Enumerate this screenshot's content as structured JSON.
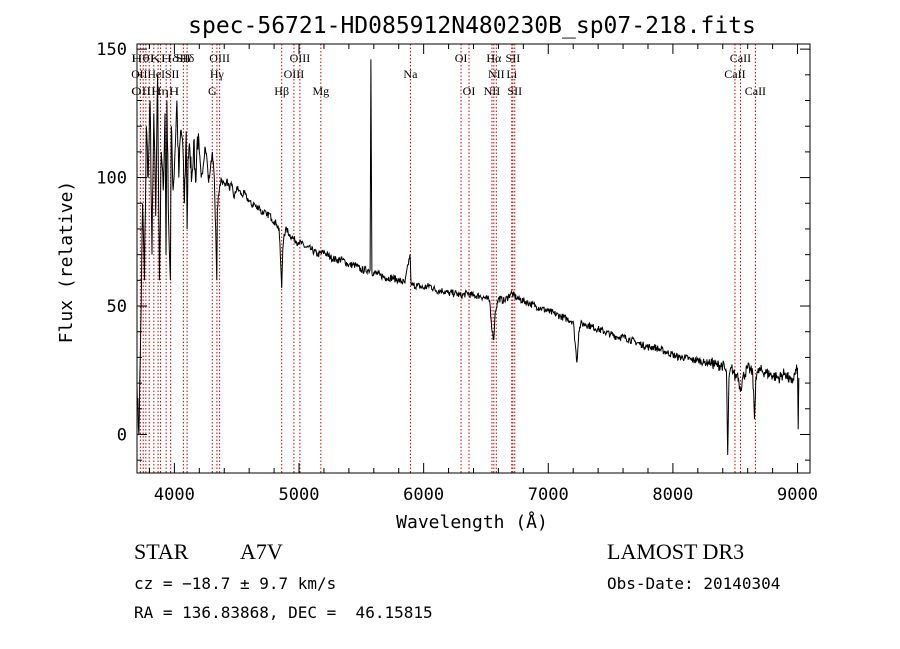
{
  "chart_data": {
    "type": "line",
    "title": "spec-56721-HD085912N480230B_sp07-218.fits",
    "xlabel": "Wavelength (Å)",
    "ylabel": "Flux (relative)",
    "xlim": [
      3700,
      9100
    ],
    "ylim": [
      -15,
      152
    ],
    "xticks": [
      4000,
      5000,
      6000,
      7000,
      8000,
      9000
    ],
    "yticks": [
      0,
      50,
      100,
      150
    ],
    "x_minor_step": 200,
    "y_minor_step": 10,
    "grid": false,
    "series": [
      {
        "name": "flux",
        "x": [
          3700,
          3715,
          3730,
          3745,
          3760,
          3775,
          3790,
          3805,
          3820,
          3835,
          3850,
          3865,
          3880,
          3895,
          3910,
          3925,
          3933,
          3940,
          3955,
          3968,
          3975,
          3990,
          4005,
          4020,
          4035,
          4050,
          4065,
          4080,
          4095,
          4102,
          4110,
          4125,
          4140,
          4155,
          4170,
          4185,
          4200,
          4215,
          4230,
          4245,
          4260,
          4275,
          4290,
          4305,
          4320,
          4335,
          4340,
          4345,
          4360,
          4375,
          4390,
          4405,
          4420,
          4440,
          4460,
          4480,
          4500,
          4520,
          4540,
          4560,
          4580,
          4600,
          4620,
          4640,
          4660,
          4680,
          4700,
          4720,
          4740,
          4760,
          4780,
          4800,
          4820,
          4840,
          4850,
          4861,
          4870,
          4880,
          4900,
          4920,
          4940,
          4960,
          4980,
          5000,
          5050,
          5100,
          5150,
          5200,
          5250,
          5300,
          5350,
          5400,
          5450,
          5500,
          5550,
          5570,
          5577,
          5585,
          5600,
          5650,
          5700,
          5750,
          5800,
          5850,
          5890,
          5900,
          5950,
          6000,
          6050,
          6100,
          6150,
          6200,
          6250,
          6300,
          6350,
          6400,
          6450,
          6500,
          6530,
          6550,
          6563,
          6575,
          6600,
          6650,
          6700,
          6750,
          6800,
          6850,
          6900,
          6950,
          7000,
          7050,
          7100,
          7150,
          7200,
          7230,
          7245,
          7260,
          7300,
          7350,
          7400,
          7450,
          7500,
          7550,
          7600,
          7650,
          7700,
          7750,
          7800,
          7850,
          7900,
          7950,
          8000,
          8050,
          8100,
          8150,
          8200,
          8250,
          8300,
          8350,
          8400,
          8430,
          8440,
          8450,
          8470,
          8490,
          8500,
          8520,
          8530,
          8545,
          8560,
          8600,
          8640,
          8655,
          8665,
          8680,
          8700,
          8750,
          8800,
          8850,
          8900,
          8950,
          9000,
          9005,
          9010
        ],
        "y": [
          20,
          0,
          40,
          90,
          60,
          120,
          100,
          130,
          70,
          125,
          85,
          140,
          60,
          110,
          95,
          125,
          70,
          130,
          80,
          60,
          120,
          95,
          110,
          130,
          100,
          118,
          115,
          90,
          118,
          80,
          108,
          110,
          100,
          114,
          98,
          116,
          110,
          100,
          104,
          112,
          108,
          98,
          104,
          110,
          100,
          72,
          60,
          88,
          95,
          100,
          98,
          97,
          99,
          96,
          97,
          92,
          96,
          95,
          93,
          94,
          92,
          91,
          89,
          90,
          88,
          89,
          86,
          87,
          85,
          86,
          84,
          83,
          82,
          80,
          70,
          57,
          72,
          78,
          80,
          78,
          77,
          76,
          75,
          75,
          73,
          72,
          70,
          71,
          69,
          68,
          68,
          66,
          66,
          64,
          64,
          64,
          146,
          63,
          63,
          62,
          61,
          61,
          60,
          59,
          70,
          58,
          58,
          57,
          58,
          56,
          56,
          55,
          55,
          54,
          55,
          54,
          54,
          53,
          52,
          40,
          37,
          48,
          53,
          52,
          55,
          53,
          52,
          51,
          50,
          49,
          48,
          47,
          46,
          45,
          44,
          28,
          40,
          43,
          43,
          42,
          41,
          40,
          39,
          38,
          38,
          37,
          36,
          35,
          34,
          34,
          33,
          32,
          31,
          30,
          30,
          29,
          29,
          28,
          28,
          27,
          27,
          24,
          -8,
          22,
          26,
          24,
          22,
          24,
          20,
          18,
          22,
          26,
          24,
          6,
          22,
          24,
          25,
          24,
          23,
          22,
          24,
          20,
          26,
          2,
          22
        ]
      }
    ],
    "line_markers": [
      {
        "wavelength": 3727,
        "label": "OII",
        "row": 2
      },
      {
        "wavelength": 3750,
        "label": "",
        "row": 0
      },
      {
        "wavelength": 3771,
        "label": "",
        "row": 0
      },
      {
        "wavelength": 3798,
        "label": "Hθ",
        "row": 1
      },
      {
        "wavelength": 3835,
        "label": "Hη",
        "row": 2
      },
      {
        "wavelength": 3869,
        "label": "",
        "row": 0
      },
      {
        "wavelength": 3889,
        "label": "Hε",
        "row": 1
      },
      {
        "wavelength": 3934,
        "label": "K",
        "row": 1
      },
      {
        "wavelength": 3970,
        "label": "H",
        "row": 2
      },
      {
        "wavelength": 4072,
        "label": "SII",
        "row": 1
      },
      {
        "wavelength": 4102,
        "label": "Hδ",
        "row": 1
      },
      {
        "wavelength": 4304,
        "label": "G",
        "row": 3
      },
      {
        "wavelength": 4341,
        "label": "Hγ",
        "row": 2
      },
      {
        "wavelength": 4363,
        "label": "OIII",
        "row": 1
      },
      {
        "wavelength": 4861,
        "label": "Hβ",
        "row": 3
      },
      {
        "wavelength": 4959,
        "label": "OIII",
        "row": 2
      },
      {
        "wavelength": 5007,
        "label": "OIII",
        "row": 1
      },
      {
        "wavelength": 5175,
        "label": "Mg",
        "row": 3
      },
      {
        "wavelength": 5894,
        "label": "Na",
        "row": 2
      },
      {
        "wavelength": 6300,
        "label": "OI",
        "row": 1
      },
      {
        "wavelength": 6364,
        "label": "OI",
        "row": 3
      },
      {
        "wavelength": 6548,
        "label": "NII",
        "row": 3
      },
      {
        "wavelength": 6563,
        "label": "Hα",
        "row": 1
      },
      {
        "wavelength": 6583,
        "label": "NII",
        "row": 2
      },
      {
        "wavelength": 6707,
        "label": "Li",
        "row": 2
      },
      {
        "wavelength": 6716,
        "label": "SII",
        "row": 1
      },
      {
        "wavelength": 6731,
        "label": "SII",
        "row": 3
      },
      {
        "wavelength": 8498,
        "label": "CaII",
        "row": 2
      },
      {
        "wavelength": 8542,
        "label": "CaII",
        "row": 1
      },
      {
        "wavelength": 8662,
        "label": "CaII",
        "row": 3
      }
    ],
    "label_strips": [
      {
        "text": "HθKHδ",
        "row": 1,
        "wavelength": 3718
      },
      {
        "text": "OIIHeISII",
        "row": 2,
        "wavelength": 3718
      },
      {
        "text": "OIIHηH",
        "row": 3,
        "wavelength": 3718
      }
    ]
  },
  "info": {
    "object_class": "STAR",
    "spectral_type": "A7V",
    "survey": "LAMOST DR3",
    "cz": "cz = −18.7 ± 9.7 km/s",
    "obs_date": "Obs-Date: 20140304",
    "coords": "RA = 136.83868, DEC =  46.15815"
  },
  "colors": {
    "spectrum": "#000000",
    "line_marker": "#cc0000",
    "axes": "#000000",
    "background": "#ffffff"
  }
}
